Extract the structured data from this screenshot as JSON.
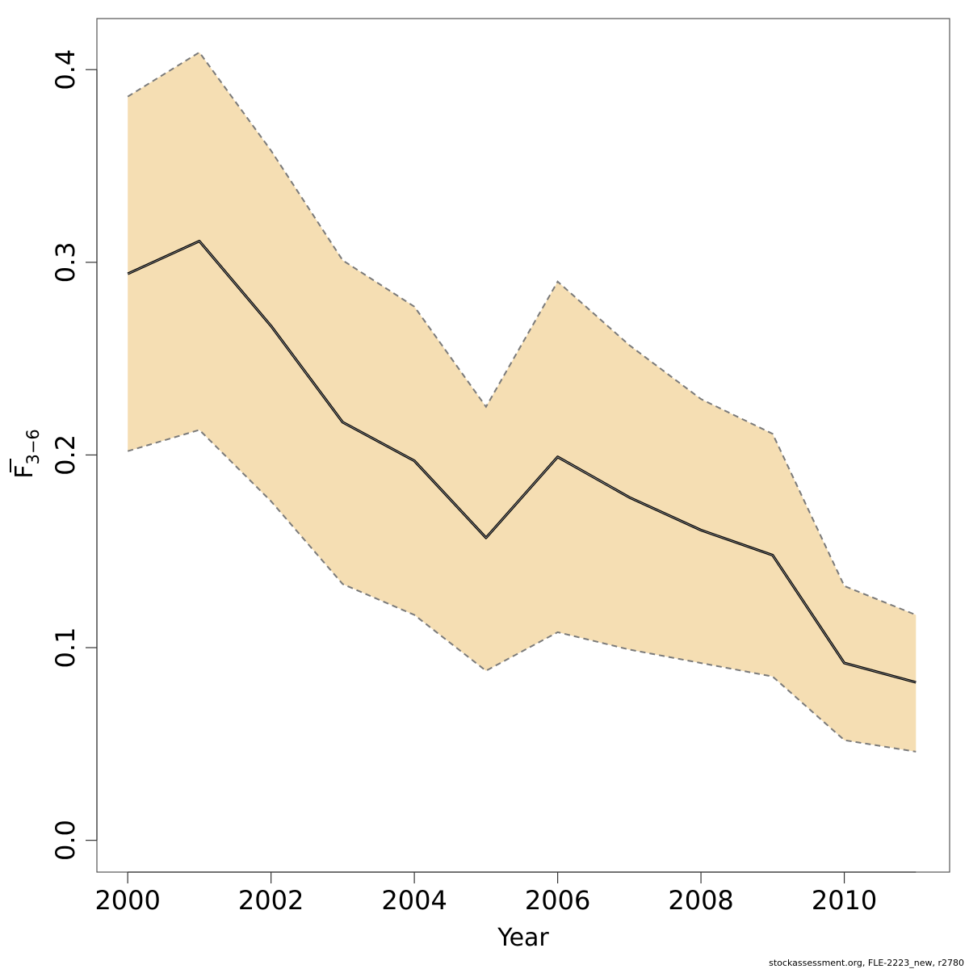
{
  "chart_data": {
    "type": "line",
    "x": [
      2000,
      2001,
      2002,
      2003,
      2004,
      2005,
      2006,
      2007,
      2008,
      2009,
      2010,
      2011
    ],
    "series": [
      {
        "values": [
          0.294,
          0.311,
          0.267,
          0.217,
          0.197,
          0.157,
          0.199,
          0.178,
          0.161,
          0.148,
          0.092,
          0.082
        ]
      }
    ],
    "band": {
      "lower": [
        0.202,
        0.213,
        0.176,
        0.133,
        0.117,
        0.088,
        0.108,
        0.099,
        0.092,
        0.085,
        0.052,
        0.046
      ],
      "upper": [
        0.386,
        0.409,
        0.358,
        0.301,
        0.277,
        0.225,
        0.29,
        0.257,
        0.229,
        0.211,
        0.132,
        0.117
      ]
    },
    "xlabel": "Year",
    "ylabel": {
      "main": "F",
      "sub": "3−6",
      "overline": true
    },
    "xlim": [
      1999.57,
      2011.47
    ],
    "ylim": [
      -0.0165,
      0.4265
    ],
    "xticks": [
      2000,
      2002,
      2004,
      2006,
      2008,
      2010
    ],
    "yticks": [
      0.0,
      0.1,
      0.2,
      0.3,
      0.4
    ],
    "ytick_labels": [
      "0.0",
      "0.1",
      "0.2",
      "0.3",
      "0.4"
    ],
    "grid": false,
    "colors": {
      "band": "#f5deb3",
      "line": "#000000",
      "band_edge": "#7a7a7a"
    }
  },
  "footer": {
    "credit": "stockassessment.org, FLE-2223_new, r2780"
  }
}
